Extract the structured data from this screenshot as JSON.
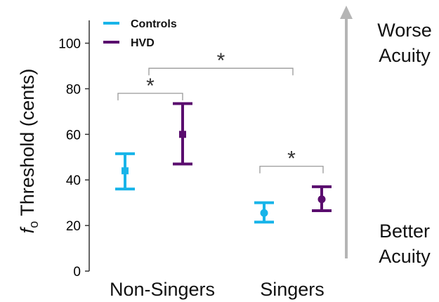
{
  "chart_data": {
    "type": "scatter",
    "ylabel_symbol": "f",
    "ylabel_subscript": "o",
    "ylabel_rest": " Threshold (cents)",
    "ylim": [
      0,
      110
    ],
    "yticks": [
      0,
      20,
      40,
      60,
      80,
      100
    ],
    "groups": [
      "Non-Singers",
      "Singers"
    ],
    "series": [
      {
        "name": "Controls",
        "color": "#18b4e9",
        "points": [
          {
            "group": "Non-Singers",
            "marker": "square",
            "y": 44,
            "lower": 36,
            "upper": 51.5
          },
          {
            "group": "Singers",
            "marker": "circle",
            "y": 25.5,
            "lower": 21.5,
            "upper": 30
          }
        ]
      },
      {
        "name": "HVD",
        "color": "#5a0c6e",
        "points": [
          {
            "group": "Non-Singers",
            "marker": "square",
            "y": 60,
            "lower": 47,
            "upper": 73.5
          },
          {
            "group": "Singers",
            "marker": "circle",
            "y": 31.5,
            "lower": 26.5,
            "upper": 37
          }
        ]
      }
    ],
    "significance": [
      {
        "label": "*",
        "between": "Controls vs HVD (Non-Singers)",
        "y": 78
      },
      {
        "label": "*",
        "between": "Non-Singers vs Singers",
        "y": 89
      },
      {
        "label": "*",
        "between": "Controls vs HVD (Singers)",
        "y": 46
      }
    ],
    "arrow_top_label": [
      "Worse",
      "Acuity"
    ],
    "arrow_bottom_label": [
      "Better",
      "Acuity"
    ],
    "arrow_color": "#b5b5b5",
    "bracket_color": "#999999"
  }
}
